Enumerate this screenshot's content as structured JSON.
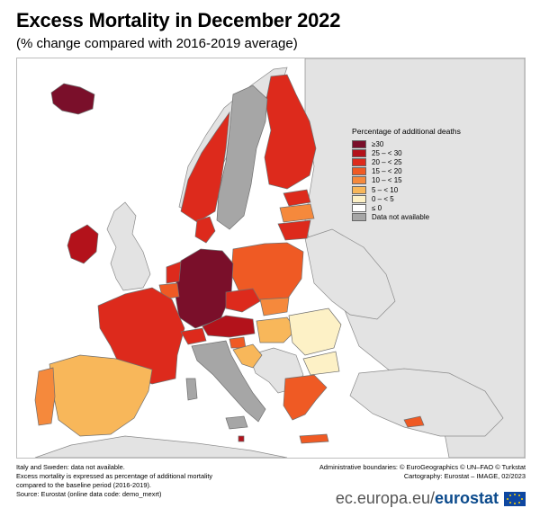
{
  "title": "Excess Mortality in December 2022",
  "subtitle": "(% change compared with 2016-2019 average)",
  "legend": {
    "title": "Percentage of additional deaths",
    "items": [
      {
        "label": "≥30",
        "color": "#7a0f2a"
      },
      {
        "label": "25 – < 30",
        "color": "#b3121b"
      },
      {
        "label": "20 – < 25",
        "color": "#dd2a1c"
      },
      {
        "label": "15 – < 20",
        "color": "#ef5a24"
      },
      {
        "label": "10 – < 15",
        "color": "#f5893c"
      },
      {
        "label": "5 – < 10",
        "color": "#f8b75a"
      },
      {
        "label": "0 – < 5",
        "color": "#fdf1c6"
      },
      {
        "label": "≤ 0",
        "color": "#ffffff"
      },
      {
        "label": "Data not available",
        "color": "#a6a6a6"
      }
    ]
  },
  "notes": {
    "na": "Italy and Sweden: data not available.",
    "def1": "Excess mortality is expressed as percentage of additional mortality",
    "def2": "compared to the baseline period (2016-2019).",
    "source": "Source: Eurostat (online data code: demo_mexrt)"
  },
  "credits": {
    "admin": "Administrative boundaries: © EuroGeographics © UN–FAO © Turkstat",
    "carto": "Cartography: Eurostat – IMAGE, 02/2023"
  },
  "branding": {
    "url": "ec.europa.eu/",
    "name": "eurostat"
  },
  "colors": {
    "sea": "#ffffff",
    "land_non_eu": "#e3e3e3",
    "border": "#6f6f6f"
  }
}
